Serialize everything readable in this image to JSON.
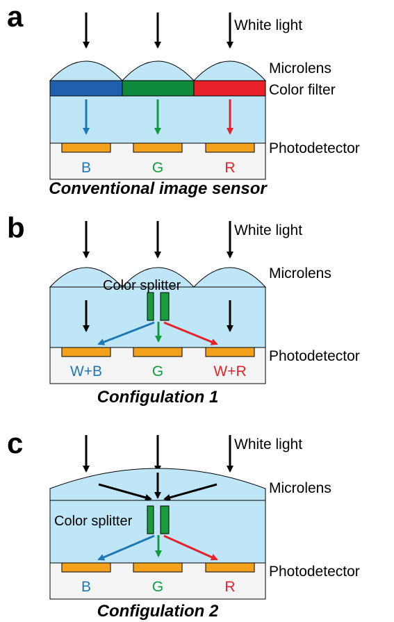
{
  "panels": [
    {
      "letter": "a",
      "white_light": "White light",
      "microlens": "Microlens",
      "color_filter": "Color filter",
      "photodetector": "Photodetector",
      "pixels": [
        "B",
        "G",
        "R"
      ],
      "caption": "Conventional image sensor",
      "filter_colors": [
        "#1f5fab",
        "#0d8a3a",
        "#e8202a"
      ]
    },
    {
      "letter": "b",
      "white_light": "White light",
      "microlens": "Microlens",
      "color_splitter": "Color splitter",
      "photodetector": "Photodetector",
      "pixels": [
        "W+B",
        "G",
        "W+R"
      ],
      "caption": "Configulation 1"
    },
    {
      "letter": "c",
      "white_light": "White light",
      "microlens": "Microlens",
      "color_splitter": "Color splitter",
      "photodetector": "Photodetector",
      "pixels": [
        "B",
        "G",
        "R"
      ],
      "caption": "Configulation 2"
    }
  ],
  "colors": {
    "lens_fill": "#bfe6f7",
    "detector_fill": "#f4a21e",
    "substrate_fill": "#f4f4f4",
    "blue": "#1f78b4",
    "green": "#109a3e",
    "red": "#e3232b",
    "splitter_fill": "#1a9b3c"
  }
}
